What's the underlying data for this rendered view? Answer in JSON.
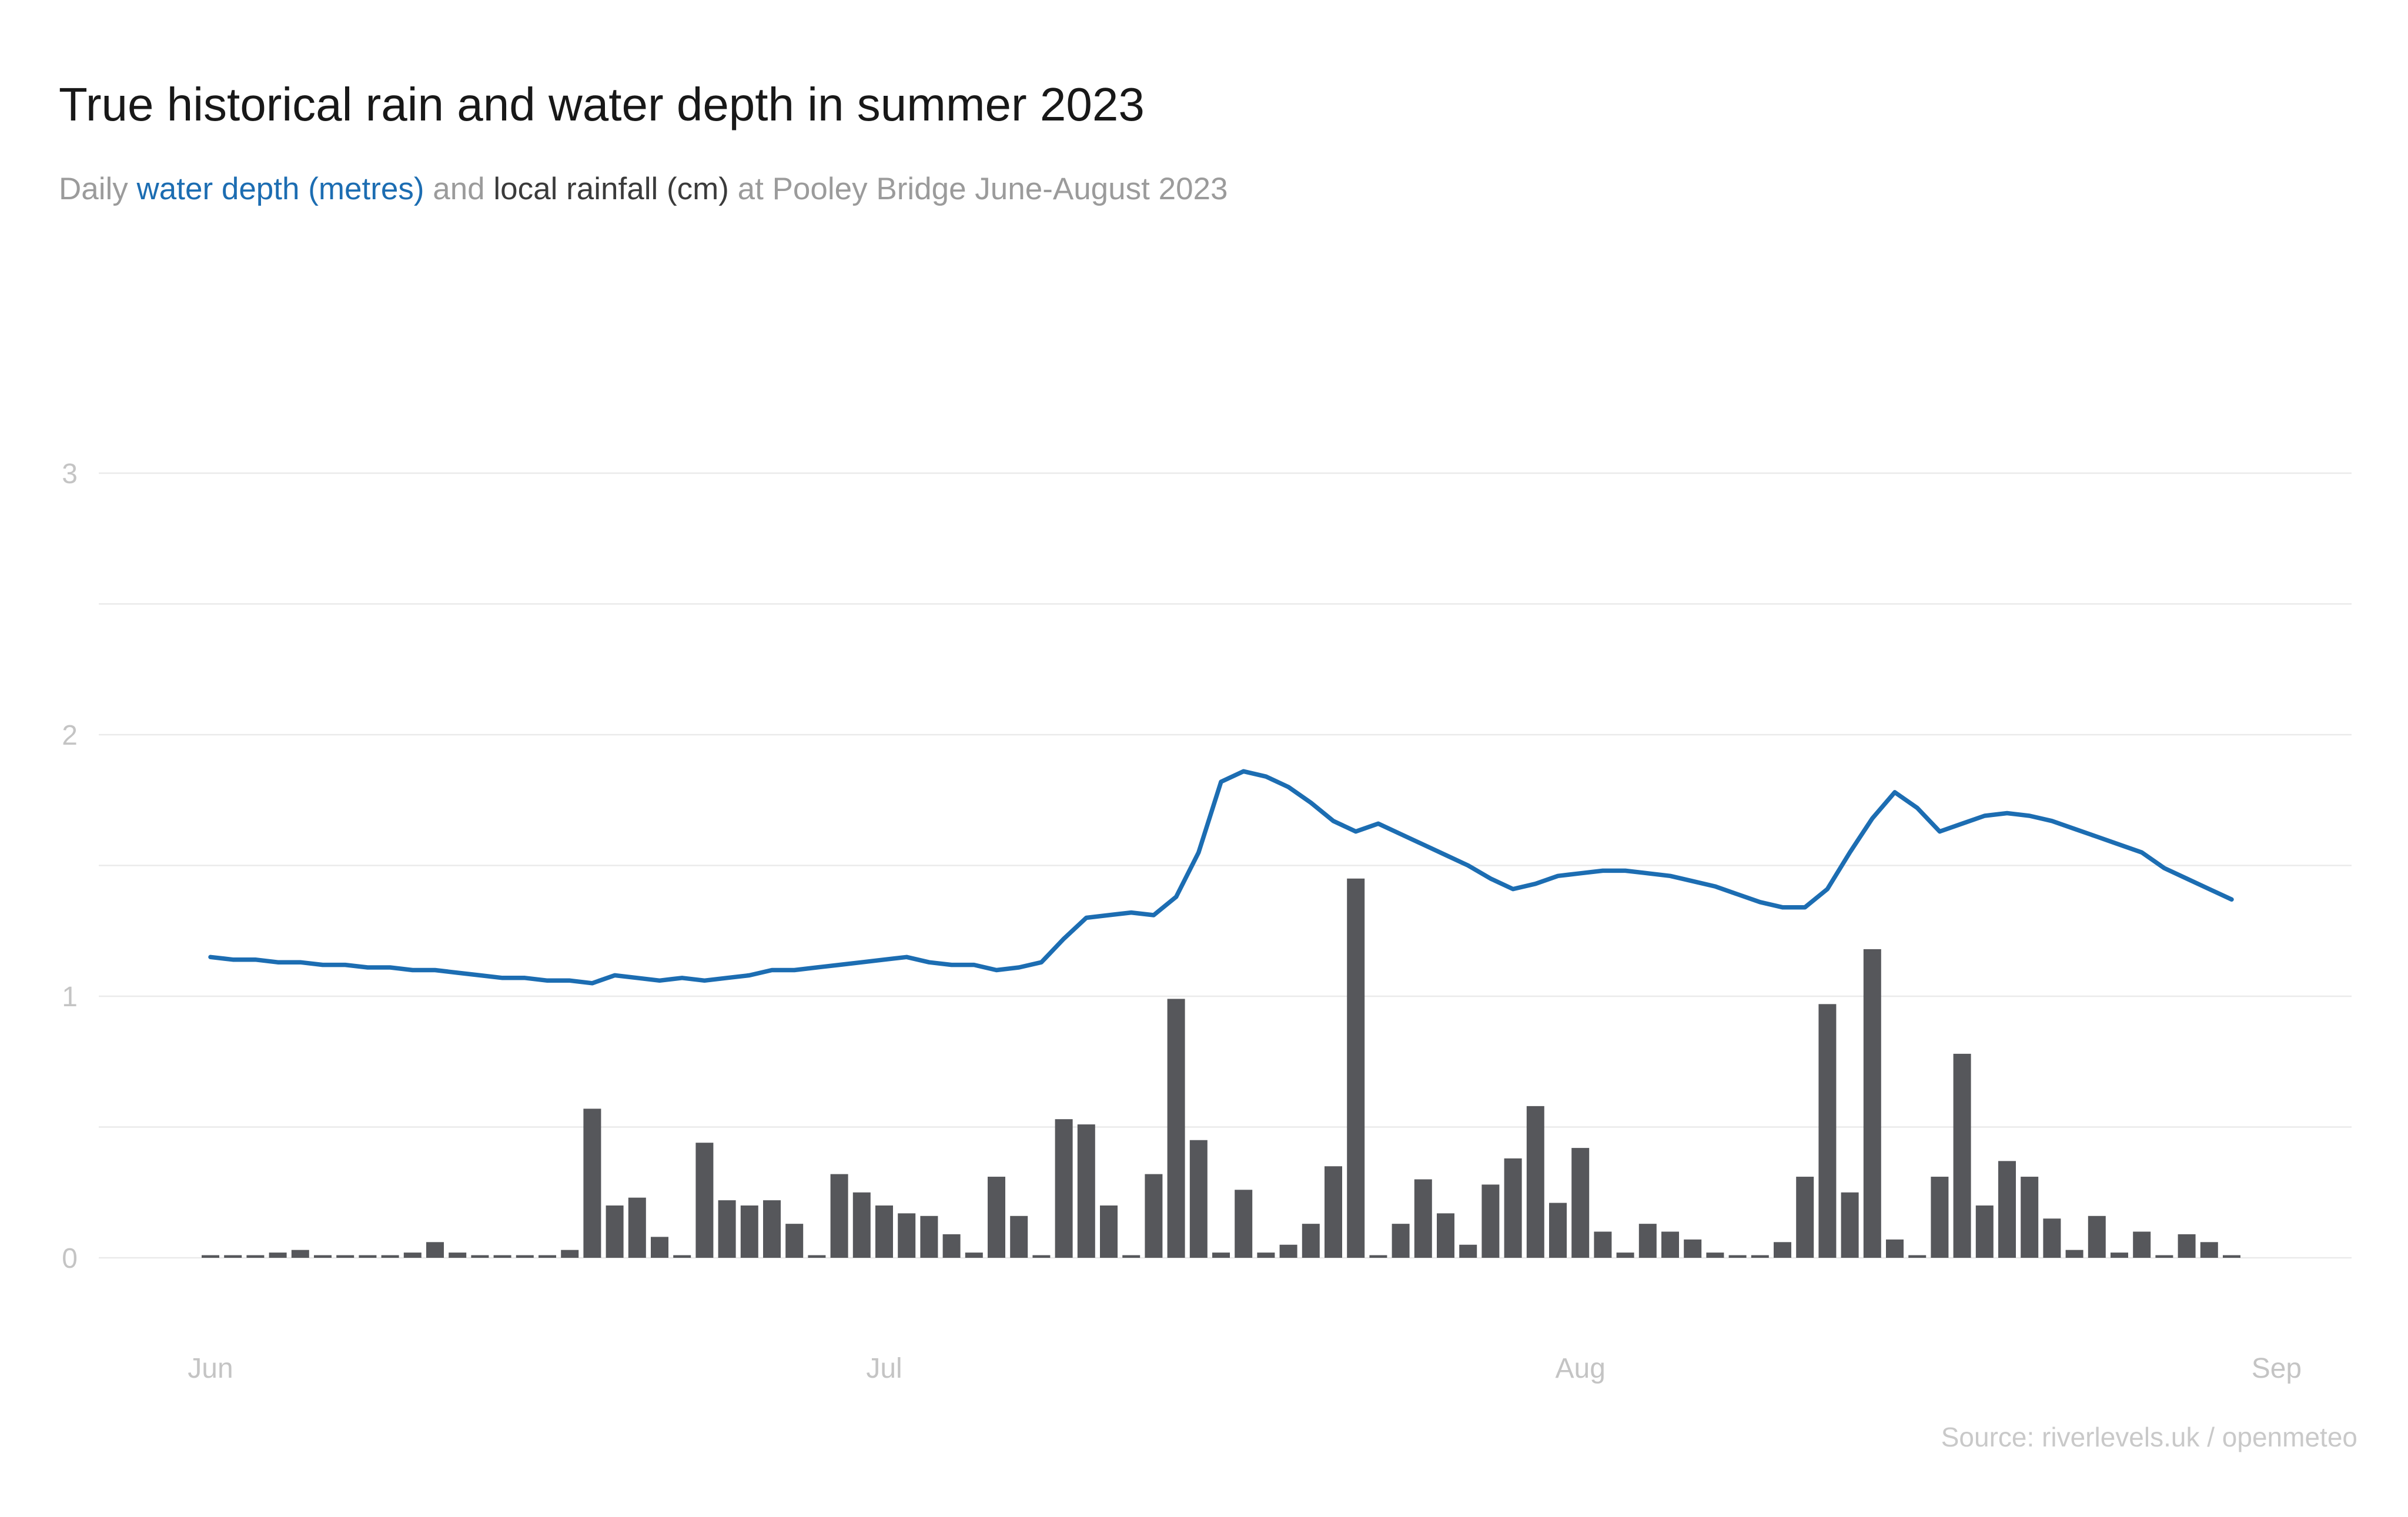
{
  "header": {
    "title": "True historical rain and water depth in summer 2023",
    "subtitle_parts": [
      {
        "text": "Daily ",
        "color": "#9b9b9b"
      },
      {
        "text": "water depth (metres)",
        "color": "#1c6db2"
      },
      {
        "text": " and ",
        "color": "#9b9b9b"
      },
      {
        "text": "local rainfall (cm)",
        "color": "#3b3b3b"
      },
      {
        "text": " at Pooley Bridge June-August 2023",
        "color": "#9b9b9b"
      }
    ]
  },
  "source": "Source: riverlevels.uk / openmeteo",
  "colors": {
    "depth_line": "#1c6db2",
    "rain_bar": "#56575b",
    "gridline": "#eaeaea",
    "axis_label": "#c4c4c4",
    "source_text": "#c9c9c9",
    "title_text": "#181818"
  },
  "chart_data": {
    "type": "line+bar",
    "title": "True historical rain and water depth in summer 2023",
    "xlabel": "",
    "ylabel": "",
    "ylim": [
      0,
      3.25
    ],
    "grid": "horizontal",
    "legend_position": "none",
    "yticks": [
      0,
      1,
      2,
      3
    ],
    "gridlines": [
      0,
      0.5,
      1,
      1.5,
      2,
      2.5,
      3
    ],
    "x_ticks": [
      {
        "label": "Jun",
        "day": 0
      },
      {
        "label": "Jul",
        "day": 30
      },
      {
        "label": "Aug",
        "day": 61
      },
      {
        "label": "Sep",
        "day": 92
      }
    ],
    "x_unit": "day (Jun 1 - Aug 30)",
    "series": [
      {
        "name": "water depth (metres)",
        "type": "line",
        "color": "#1c6db2",
        "values": [
          1.15,
          1.14,
          1.14,
          1.13,
          1.13,
          1.12,
          1.12,
          1.11,
          1.11,
          1.1,
          1.1,
          1.09,
          1.08,
          1.07,
          1.07,
          1.06,
          1.06,
          1.05,
          1.08,
          1.07,
          1.06,
          1.07,
          1.06,
          1.07,
          1.08,
          1.1,
          1.1,
          1.11,
          1.12,
          1.13,
          1.14,
          1.15,
          1.13,
          1.12,
          1.12,
          1.1,
          1.11,
          1.13,
          1.22,
          1.3,
          1.31,
          1.32,
          1.31,
          1.38,
          1.55,
          1.82,
          1.86,
          1.84,
          1.8,
          1.74,
          1.67,
          1.63,
          1.66,
          1.62,
          1.58,
          1.54,
          1.5,
          1.45,
          1.41,
          1.43,
          1.46,
          1.47,
          1.48,
          1.48,
          1.47,
          1.46,
          1.44,
          1.42,
          1.39,
          1.36,
          1.34,
          1.34,
          1.41,
          1.55,
          1.68,
          1.78,
          1.72,
          1.63,
          1.66,
          1.69,
          1.7,
          1.69,
          1.67,
          1.64,
          1.61,
          1.58,
          1.55,
          1.49,
          1.45,
          1.41,
          1.37
        ]
      },
      {
        "name": "local rainfall (cm)",
        "type": "bar",
        "color": "#56575b",
        "values": [
          0.01,
          0.01,
          0.01,
          0.02,
          0.03,
          0.01,
          0.01,
          0.01,
          0.01,
          0.02,
          0.06,
          0.02,
          0.01,
          0.01,
          0.01,
          0.01,
          0.03,
          0.57,
          0.2,
          0.23,
          0.08,
          0.01,
          0.44,
          0.22,
          0.2,
          0.22,
          0.13,
          0.01,
          0.32,
          0.25,
          0.2,
          0.17,
          0.16,
          0.09,
          0.02,
          0.31,
          0.16,
          0.01,
          0.53,
          0.51,
          0.2,
          0.01,
          0.32,
          0.99,
          0.45,
          0.02,
          0.26,
          0.02,
          0.05,
          0.13,
          0.35,
          1.45,
          0.01,
          0.13,
          0.3,
          0.17,
          0.05,
          0.28,
          0.38,
          0.58,
          0.21,
          0.42,
          0.1,
          0.02,
          0.13,
          0.1,
          0.07,
          0.02,
          0.01,
          0.01,
          0.06,
          0.31,
          0.97,
          0.25,
          1.18,
          0.07,
          0.01,
          0.31,
          0.78,
          0.2,
          0.37,
          0.31,
          0.15,
          0.03,
          0.16,
          0.02,
          0.1,
          0.01,
          0.09,
          0.06,
          0.01
        ]
      }
    ]
  }
}
